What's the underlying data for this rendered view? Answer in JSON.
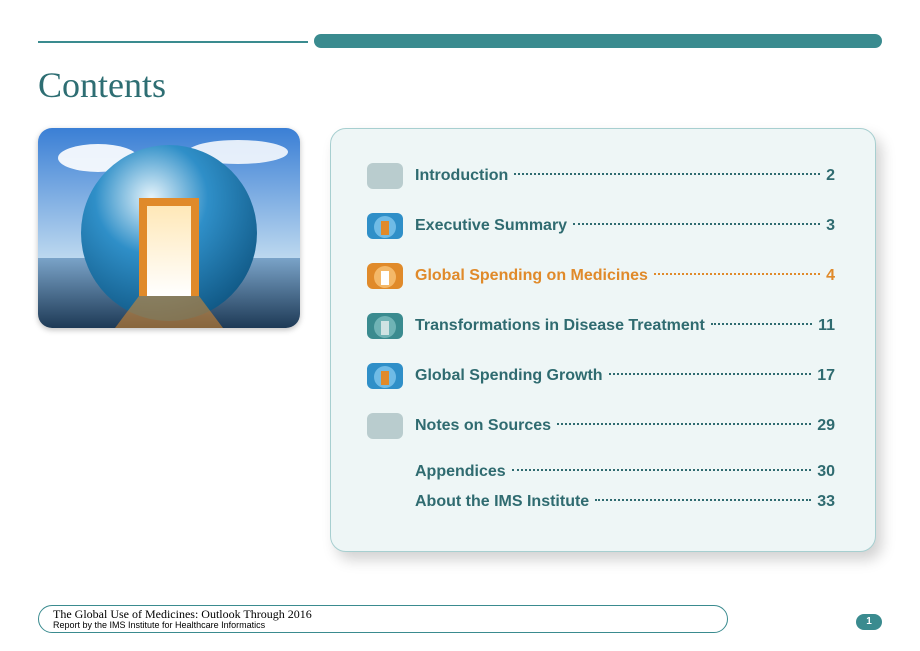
{
  "colors": {
    "teal": "#3a8b8f",
    "teal_dark": "#2e6e73",
    "teal_text": "#2f6b70",
    "orange": "#e08a2a",
    "panel_bg": "#eef6f6",
    "panel_border": "#a7cfd0",
    "thumb_grey": "#b9ccce"
  },
  "title": "Contents",
  "toc": [
    {
      "label": "Introduction",
      "page": "2",
      "color_key": "teal_text",
      "thumb": "grey"
    },
    {
      "label": "Executive Summary",
      "page": "3",
      "color_key": "teal_text",
      "thumb": "blue"
    },
    {
      "label": "Global Spending on Medicines",
      "page": "4",
      "color_key": "orange",
      "thumb": "orange"
    },
    {
      "label": "Transformations in Disease Treatment",
      "page": "11",
      "color_key": "teal_text",
      "thumb": "teal"
    },
    {
      "label": "Global Spending Growth",
      "page": "17",
      "color_key": "teal_text",
      "thumb": "blue"
    },
    {
      "label": "Notes on Sources",
      "page": "29",
      "color_key": "teal_text",
      "thumb": "grey"
    },
    {
      "label": "Appendices",
      "page": "30",
      "color_key": "teal_text",
      "thumb": null,
      "sub": true
    },
    {
      "label": "About the IMS Institute",
      "page": "33",
      "color_key": "teal_text",
      "thumb": null,
      "sub": true
    }
  ],
  "footer": {
    "title": "The Global Use of Medicines: Outlook Through 2016",
    "subtitle": "Report by the IMS Institute for Healthcare Informatics",
    "page_number": "1"
  },
  "hero_svg": {
    "sky_top": "#3a7fd5",
    "sky_bot": "#bcd8ef",
    "cloud": "#ffffff",
    "sphere_top": "#2f8fc8",
    "sphere_bot": "#0b4f7a",
    "sphere_hi": "#e6f4fb",
    "ground_top": "#7aa3c8",
    "ground_bot": "#1e3a56",
    "door_outer": "#e08a2a",
    "door_inner": "#ffffff",
    "door_glow": "#ffe8b8"
  },
  "thumb_palettes": {
    "grey": {
      "bg": "#b9ccce",
      "door": "#b9ccce",
      "sphere": "#b9ccce"
    },
    "blue": {
      "bg": "#2f8fc8",
      "door": "#e08a2a",
      "sphere": "#6fbbe6"
    },
    "orange": {
      "bg": "#e08a2a",
      "door": "#ffffff",
      "sphere": "#f4b868"
    },
    "teal": {
      "bg": "#3a8b8f",
      "door": "#cfe3e3",
      "sphere": "#6fb3b5"
    }
  }
}
